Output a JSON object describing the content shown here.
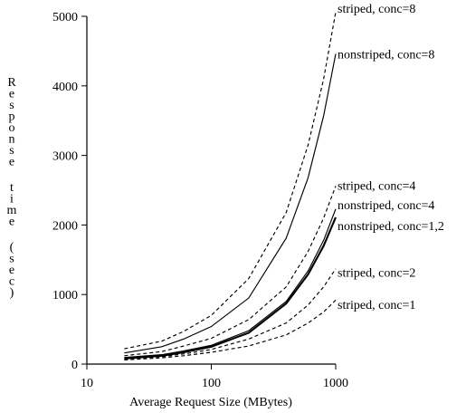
{
  "chart_data": {
    "type": "line",
    "xlabel": "Average Request Size (MBytes)",
    "ylabel": "Response time (sec)",
    "x_scale": "log",
    "xlim": [
      10,
      1000
    ],
    "ylim": [
      0,
      5000
    ],
    "x_ticks": [
      {
        "value": 10,
        "label": "10"
      },
      {
        "value": 100,
        "label": "100"
      },
      {
        "value": 1000,
        "label": "1000"
      }
    ],
    "y_ticks": [
      {
        "value": 0,
        "label": "0"
      },
      {
        "value": 1000,
        "label": "1000"
      },
      {
        "value": 2000,
        "label": "2000"
      },
      {
        "value": 3000,
        "label": "3000"
      },
      {
        "value": 4000,
        "label": "4000"
      },
      {
        "value": 5000,
        "label": "5000"
      }
    ],
    "x": [
      20,
      40,
      60,
      100,
      200,
      400,
      600,
      800,
      1000
    ],
    "series": [
      {
        "name": "striped, conc=8",
        "style": "dashed",
        "values": [
          220,
          330,
          470,
          700,
          1230,
          2180,
          3150,
          4100,
          5060
        ]
      },
      {
        "name": "nonstriped, conc=8",
        "style": "solid",
        "values": [
          160,
          250,
          360,
          540,
          950,
          1810,
          2680,
          3570,
          4460
        ]
      },
      {
        "name": "striped, conc=4",
        "style": "dashed",
        "values": [
          120,
          180,
          260,
          370,
          640,
          1110,
          1620,
          2100,
          2560
        ]
      },
      {
        "name": "nonstriped, conc=4",
        "style": "solid",
        "values": [
          95,
          135,
          190,
          270,
          480,
          900,
          1340,
          1780,
          2230
        ]
      },
      {
        "name": "nonstriped, conc=1,2",
        "style": "solid",
        "values": [
          80,
          120,
          170,
          250,
          450,
          870,
          1290,
          1700,
          2110
        ]
      },
      {
        "name": "striped, conc=2",
        "style": "dashed",
        "values": [
          70,
          105,
          145,
          210,
          360,
          590,
          850,
          1110,
          1370
        ]
      },
      {
        "name": "striped, conc=1",
        "style": "dashed",
        "values": [
          60,
          90,
          120,
          170,
          260,
          420,
          590,
          750,
          920
        ]
      }
    ],
    "annotations": [
      {
        "text": "striped, conc=8",
        "x": 1000,
        "y": 5120
      },
      {
        "text": "nonstriped, conc=8",
        "x": 1000,
        "y": 4460
      },
      {
        "text": "striped, conc=4",
        "x": 1000,
        "y": 2570
      },
      {
        "text": "nonstriped, conc=4",
        "x": 1000,
        "y": 2290
      },
      {
        "text": "nonstriped, conc=1,2",
        "x": 1000,
        "y": 1990
      },
      {
        "text": "striped, conc=2",
        "x": 1000,
        "y": 1320
      },
      {
        "text": "striped, conc=1",
        "x": 1000,
        "y": 860
      }
    ]
  },
  "colors": {
    "lines": "#000000",
    "background": "#ffffff"
  }
}
